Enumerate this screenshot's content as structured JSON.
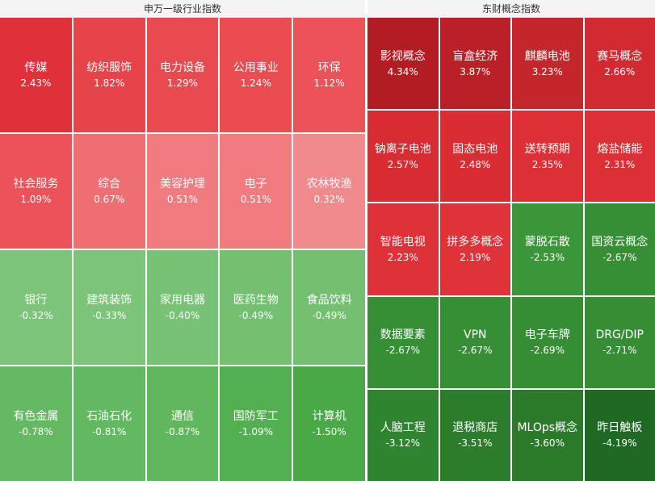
{
  "panels": [
    {
      "title": "申万一级行业指数",
      "rows": 4,
      "cols": 5,
      "tiles": [
        {
          "name": "传媒",
          "change": "2.43%",
          "color": "#e0303a"
        },
        {
          "name": "纺织服饰",
          "change": "1.82%",
          "color": "#e6434a"
        },
        {
          "name": "电力设备",
          "change": "1.29%",
          "color": "#e94a50"
        },
        {
          "name": "公用事业",
          "change": "1.24%",
          "color": "#ea4c52"
        },
        {
          "name": "环保",
          "change": "1.12%",
          "color": "#ec5358"
        },
        {
          "name": "社会服务",
          "change": "1.09%",
          "color": "#ec5258"
        },
        {
          "name": "综合",
          "change": "0.67%",
          "color": "#ef6e72"
        },
        {
          "name": "美容护理",
          "change": "0.51%",
          "color": "#f07c80"
        },
        {
          "name": "电子",
          "change": "0.51%",
          "color": "#f07c80"
        },
        {
          "name": "农林牧渔",
          "change": "0.32%",
          "color": "#f18a8c"
        },
        {
          "name": "银行",
          "change": "-0.32%",
          "color": "#7cc47a"
        },
        {
          "name": "建筑装饰",
          "change": "-0.33%",
          "color": "#7bc479"
        },
        {
          "name": "家用电器",
          "change": "-0.40%",
          "color": "#78c276"
        },
        {
          "name": "医药生物",
          "change": "-0.49%",
          "color": "#72c070"
        },
        {
          "name": "食品饮料",
          "change": "-0.49%",
          "color": "#72c070"
        },
        {
          "name": "有色金属",
          "change": "-0.78%",
          "color": "#64b962"
        },
        {
          "name": "石油石化",
          "change": "-0.81%",
          "color": "#63b961"
        },
        {
          "name": "通信",
          "change": "-0.87%",
          "color": "#60b75e"
        },
        {
          "name": "国防军工",
          "change": "-1.09%",
          "color": "#52b050"
        },
        {
          "name": "计算机",
          "change": "-1.50%",
          "color": "#48a946"
        }
      ]
    },
    {
      "title": "东财概念指数",
      "rows": 5,
      "cols": 4,
      "tiles": [
        {
          "name": "影视概念",
          "change": "4.34%",
          "color": "#b21c22"
        },
        {
          "name": "盲盒经济",
          "change": "3.87%",
          "color": "#bb2026"
        },
        {
          "name": "麒麟电池",
          "change": "3.23%",
          "color": "#c5262c"
        },
        {
          "name": "赛马概念",
          "change": "2.66%",
          "color": "#d22a30"
        },
        {
          "name": "钠离子电池",
          "change": "2.57%",
          "color": "#d62c32"
        },
        {
          "name": "固态电池",
          "change": "2.48%",
          "color": "#d82e33"
        },
        {
          "name": "送转预期",
          "change": "2.35%",
          "color": "#dc3036"
        },
        {
          "name": "熔盐储能",
          "change": "2.31%",
          "color": "#dc3036"
        },
        {
          "name": "智能电视",
          "change": "2.23%",
          "color": "#df3238"
        },
        {
          "name": "拼多多概念",
          "change": "2.19%",
          "color": "#df3339"
        },
        {
          "name": "蒙脱石散",
          "change": "-2.53%",
          "color": "#3a9638"
        },
        {
          "name": "国资云概念",
          "change": "-2.67%",
          "color": "#378f35"
        },
        {
          "name": "数据要素",
          "change": "-2.67%",
          "color": "#378f35"
        },
        {
          "name": "VPN",
          "change": "-2.67%",
          "color": "#378f35"
        },
        {
          "name": "电子车牌",
          "change": "-2.69%",
          "color": "#368e34"
        },
        {
          "name": "DRG/DIP",
          "change": "-2.71%",
          "color": "#368d34"
        },
        {
          "name": "人脑工程",
          "change": "-3.12%",
          "color": "#2f8430"
        },
        {
          "name": "退税商店",
          "change": "-3.51%",
          "color": "#2b7c2b"
        },
        {
          "name": "MLOps概念",
          "change": "-3.60%",
          "color": "#2a7a2a"
        },
        {
          "name": "昨日触板",
          "change": "-4.19%",
          "color": "#1f6a22"
        }
      ]
    }
  ]
}
